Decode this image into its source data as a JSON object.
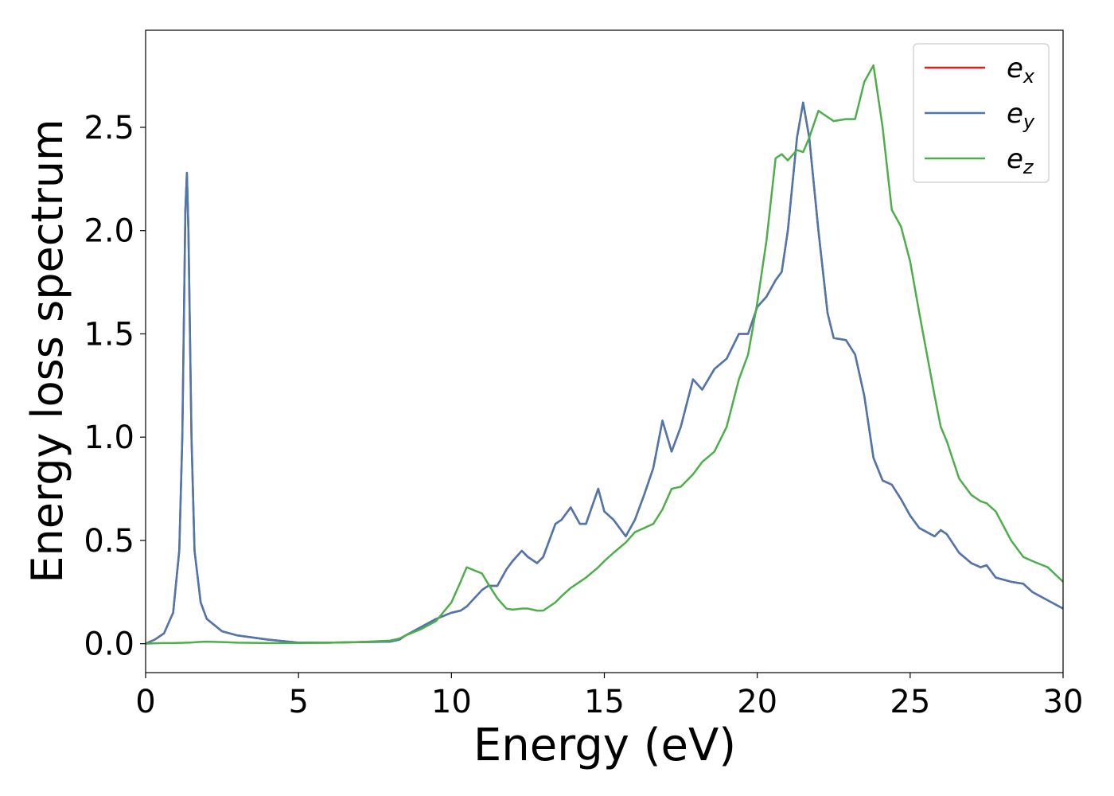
{
  "chart_data": {
    "type": "line",
    "xlabel": "Energy (eV)",
    "ylabel": "Energy loss spectrum",
    "x": [
      0,
      0.3,
      0.6,
      0.9,
      1.1,
      1.2,
      1.3,
      1.35,
      1.4,
      1.5,
      1.6,
      1.8,
      2.0,
      2.5,
      3,
      4,
      5,
      6,
      7,
      8,
      8.3,
      8.5,
      9,
      9.5,
      10,
      10.3,
      10.5,
      11,
      11.2,
      11.5,
      11.8,
      12,
      12.3,
      12.5,
      12.8,
      13,
      13.4,
      13.6,
      13.9,
      14.2,
      14.4,
      14.8,
      15.0,
      15.3,
      15.7,
      16,
      16.3,
      16.6,
      16.9,
      17.2,
      17.5,
      17.9,
      18.2,
      18.6,
      19,
      19.4,
      19.7,
      20,
      20.3,
      20.6,
      20.8,
      21.0,
      21.3,
      21.5,
      21.7,
      22.0,
      22.3,
      22.5,
      22.9,
      23.2,
      23.5,
      23.8,
      24.1,
      24.4,
      24.7,
      25,
      25.3,
      25.8,
      26,
      26.2,
      26.6,
      27,
      27.3,
      27.5,
      27.8,
      28.3,
      28.7,
      29,
      29.5,
      30
    ],
    "series": [
      {
        "name": "ex",
        "color": "#e41a1c",
        "values": [
          0,
          0.02,
          0.05,
          0.15,
          0.45,
          1.0,
          2.1,
          2.28,
          2.0,
          1.0,
          0.45,
          0.2,
          0.12,
          0.06,
          0.04,
          0.02,
          0.005,
          0.005,
          0.008,
          0.01,
          0.02,
          0.04,
          0.08,
          0.12,
          0.15,
          0.16,
          0.18,
          0.26,
          0.28,
          0.28,
          0.36,
          0.4,
          0.45,
          0.42,
          0.39,
          0.42,
          0.58,
          0.6,
          0.66,
          0.58,
          0.58,
          0.75,
          0.64,
          0.6,
          0.52,
          0.6,
          0.72,
          0.85,
          1.08,
          0.93,
          1.05,
          1.28,
          1.23,
          1.33,
          1.38,
          1.5,
          1.5,
          1.63,
          1.68,
          1.76,
          1.8,
          2.0,
          2.45,
          2.62,
          2.45,
          2.0,
          1.6,
          1.48,
          1.47,
          1.4,
          1.2,
          0.9,
          0.79,
          0.77,
          0.7,
          0.62,
          0.56,
          0.52,
          0.55,
          0.53,
          0.44,
          0.39,
          0.37,
          0.38,
          0.32,
          0.3,
          0.29,
          0.25,
          0.21,
          0.17
        ]
      },
      {
        "name": "ey",
        "color": "#4a78b0",
        "values": [
          0,
          0.02,
          0.05,
          0.15,
          0.45,
          1.0,
          2.1,
          2.28,
          2.0,
          1.0,
          0.45,
          0.2,
          0.12,
          0.06,
          0.04,
          0.02,
          0.005,
          0.005,
          0.008,
          0.01,
          0.02,
          0.04,
          0.08,
          0.12,
          0.15,
          0.16,
          0.18,
          0.26,
          0.28,
          0.28,
          0.36,
          0.4,
          0.45,
          0.42,
          0.39,
          0.42,
          0.58,
          0.6,
          0.66,
          0.58,
          0.58,
          0.75,
          0.64,
          0.6,
          0.52,
          0.6,
          0.72,
          0.85,
          1.08,
          0.93,
          1.05,
          1.28,
          1.23,
          1.33,
          1.38,
          1.5,
          1.5,
          1.63,
          1.68,
          1.76,
          1.8,
          2.0,
          2.45,
          2.62,
          2.45,
          2.0,
          1.6,
          1.48,
          1.47,
          1.4,
          1.2,
          0.9,
          0.79,
          0.77,
          0.7,
          0.62,
          0.56,
          0.52,
          0.55,
          0.53,
          0.44,
          0.39,
          0.37,
          0.38,
          0.32,
          0.3,
          0.29,
          0.25,
          0.21,
          0.17
        ]
      },
      {
        "name": "ez",
        "color": "#4daf4a",
        "values": [
          0,
          0.002,
          0.003,
          0.003,
          0.004,
          0.004,
          0.005,
          0.005,
          0.005,
          0.006,
          0.007,
          0.009,
          0.01,
          0.008,
          0.005,
          0.003,
          0.003,
          0.005,
          0.008,
          0.015,
          0.025,
          0.04,
          0.07,
          0.11,
          0.2,
          0.3,
          0.37,
          0.34,
          0.29,
          0.22,
          0.17,
          0.165,
          0.17,
          0.17,
          0.16,
          0.16,
          0.2,
          0.23,
          0.27,
          0.3,
          0.32,
          0.37,
          0.4,
          0.44,
          0.49,
          0.54,
          0.56,
          0.58,
          0.65,
          0.75,
          0.76,
          0.82,
          0.88,
          0.93,
          1.05,
          1.28,
          1.4,
          1.65,
          1.95,
          2.35,
          2.37,
          2.34,
          2.39,
          2.38,
          2.45,
          2.58,
          2.55,
          2.53,
          2.54,
          2.54,
          2.72,
          2.8,
          2.5,
          2.1,
          2.02,
          1.85,
          1.6,
          1.2,
          1.05,
          0.98,
          0.8,
          0.72,
          0.69,
          0.68,
          0.64,
          0.5,
          0.42,
          0.4,
          0.37,
          0.3
        ]
      }
    ],
    "xlim": [
      0,
      30
    ],
    "xticks": [
      0,
      5,
      10,
      15,
      20,
      25,
      30
    ],
    "ylim": [
      -0.14,
      2.97
    ],
    "yticks": [
      {
        "value": 0,
        "label": "0.0"
      },
      0.5,
      {
        "value": 1,
        "label": "1.0"
      },
      1.5,
      {
        "value": 2,
        "label": "2.0"
      },
      2.5
    ],
    "legend": "upper right",
    "grid": false
  }
}
